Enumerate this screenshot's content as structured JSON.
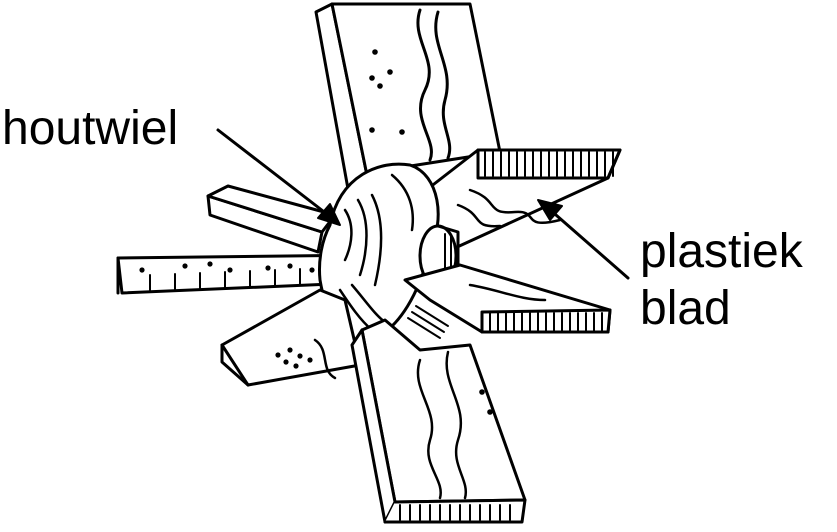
{
  "labels": {
    "houtwiel": "houtwiel",
    "plastiek": "plastiek",
    "blad": "blad"
  },
  "colors": {
    "ink": "#000000",
    "paper": "#ffffff"
  }
}
